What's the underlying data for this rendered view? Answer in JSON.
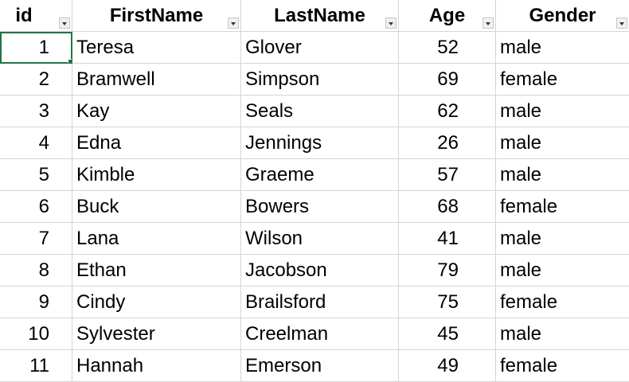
{
  "sheet": {
    "headers": [
      {
        "key": "id",
        "label": "id"
      },
      {
        "key": "FirstName",
        "label": "FirstName"
      },
      {
        "key": "LastName",
        "label": "LastName"
      },
      {
        "key": "Age",
        "label": "Age"
      },
      {
        "key": "Gender",
        "label": "Gender"
      }
    ],
    "rows": [
      {
        "id": "1",
        "first": "Teresa",
        "last": "Glover",
        "age": "52",
        "gender": "male"
      },
      {
        "id": "2",
        "first": "Bramwell",
        "last": "Simpson",
        "age": "69",
        "gender": "female"
      },
      {
        "id": "3",
        "first": "Kay",
        "last": "Seals",
        "age": "62",
        "gender": "male"
      },
      {
        "id": "4",
        "first": "Edna",
        "last": "Jennings",
        "age": "26",
        "gender": "male"
      },
      {
        "id": "5",
        "first": "Kimble",
        "last": "Graeme",
        "age": "57",
        "gender": "male"
      },
      {
        "id": "6",
        "first": "Buck",
        "last": "Bowers",
        "age": "68",
        "gender": "female"
      },
      {
        "id": "7",
        "first": "Lana",
        "last": "Wilson",
        "age": "41",
        "gender": "male"
      },
      {
        "id": "8",
        "first": "Ethan",
        "last": "Jacobson",
        "age": "79",
        "gender": "male"
      },
      {
        "id": "9",
        "first": "Cindy",
        "last": "Brailsford",
        "age": "75",
        "gender": "female"
      },
      {
        "id": "10",
        "first": "Sylvester",
        "last": "Creelman",
        "age": "45",
        "gender": "male"
      },
      {
        "id": "11",
        "first": "Hannah",
        "last": "Emerson",
        "age": "49",
        "gender": "female"
      }
    ]
  },
  "colors": {
    "gridline": "#d4d4d4",
    "selection": "#217346"
  },
  "icons": {
    "filter": "filter-dropdown-icon"
  }
}
